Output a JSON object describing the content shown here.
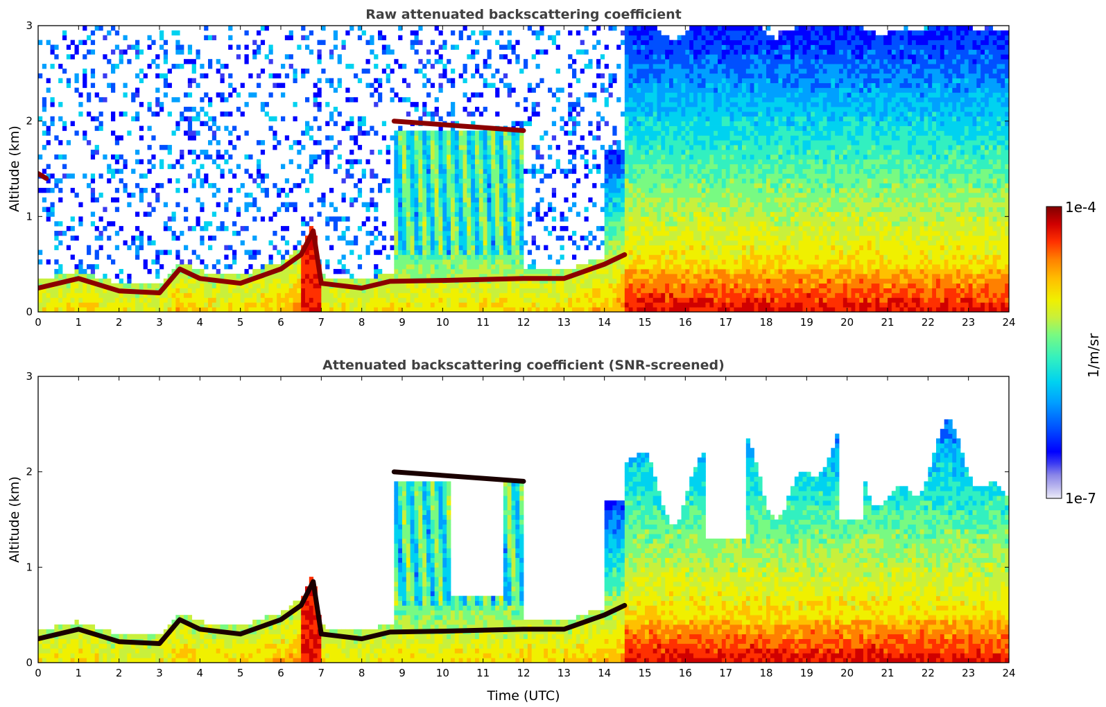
{
  "chart_data": [
    {
      "type": "heatmap",
      "title": "Raw attenuated backscattering coefficient",
      "xlabel": "",
      "ylabel": "Altitude (km)",
      "xlim": [
        0,
        24
      ],
      "ylim": [
        0,
        3
      ],
      "x_ticks": [
        "0",
        "1",
        "2",
        "3",
        "4",
        "5",
        "6",
        "7",
        "8",
        "9",
        "10",
        "11",
        "12",
        "13",
        "14",
        "15",
        "16",
        "17",
        "18",
        "19",
        "20",
        "21",
        "22",
        "23",
        "24"
      ],
      "y_ticks": [
        "0",
        "1",
        "2",
        "3"
      ],
      "features": [
        {
          "name": "boundary layer top",
          "x": [
            0,
            1,
            2,
            3,
            3.5,
            4,
            5,
            6,
            6.5,
            6.8,
            7,
            8,
            8.7,
            10,
            12,
            13,
            14,
            14.5
          ],
          "y": [
            0.25,
            0.35,
            0.22,
            0.2,
            0.45,
            0.35,
            0.3,
            0.45,
            0.6,
            0.85,
            0.3,
            0.25,
            0.32,
            0.33,
            0.35,
            0.35,
            0.5,
            0.6
          ]
        },
        {
          "name": "cloud layer",
          "x": [
            8.8,
            12
          ],
          "y": [
            2.0,
            1.9
          ]
        },
        {
          "name": "residual layer",
          "x": [
            0,
            0.2
          ],
          "y": [
            1.45,
            1.4
          ]
        }
      ]
    },
    {
      "type": "heatmap",
      "title": "Attenuated backscattering coefficient (SNR-screened)",
      "xlabel": "Time (UTC)",
      "ylabel": "Altitude (km)",
      "xlim": [
        0,
        24
      ],
      "ylim": [
        0,
        3
      ],
      "x_ticks": [
        "0",
        "1",
        "2",
        "3",
        "4",
        "5",
        "6",
        "7",
        "8",
        "9",
        "10",
        "11",
        "12",
        "13",
        "14",
        "15",
        "16",
        "17",
        "18",
        "19",
        "20",
        "21",
        "22",
        "23",
        "24"
      ],
      "y_ticks": [
        "0",
        "1",
        "2",
        "3"
      ],
      "features": [
        {
          "name": "boundary layer top",
          "x": [
            0,
            1,
            2,
            3,
            3.5,
            4,
            5,
            6,
            6.5,
            6.8,
            7,
            8,
            8.7,
            10,
            12,
            13,
            14,
            14.5
          ],
          "y": [
            0.25,
            0.35,
            0.22,
            0.2,
            0.45,
            0.35,
            0.3,
            0.45,
            0.6,
            0.85,
            0.3,
            0.25,
            0.32,
            0.33,
            0.35,
            0.35,
            0.5,
            0.6
          ]
        },
        {
          "name": "cloud layer",
          "x": [
            8.8,
            12
          ],
          "y": [
            2.0,
            1.9
          ]
        }
      ]
    }
  ],
  "colorbar": {
    "label": "1/m/sr",
    "max_label": "1e-4",
    "min_label": "1e-7",
    "scale": "log",
    "range": [
      1e-07,
      0.0001
    ],
    "colors": [
      "#ecebf7",
      "#b9b6ee",
      "#8a85e8",
      "#3b3bf2",
      "#0000ff",
      "#0050ff",
      "#00a0ff",
      "#00d2f0",
      "#32f0c0",
      "#78fa82",
      "#c8f03c",
      "#f0f000",
      "#ffc000",
      "#ff8000",
      "#ff3000",
      "#d00000",
      "#800000"
    ]
  }
}
